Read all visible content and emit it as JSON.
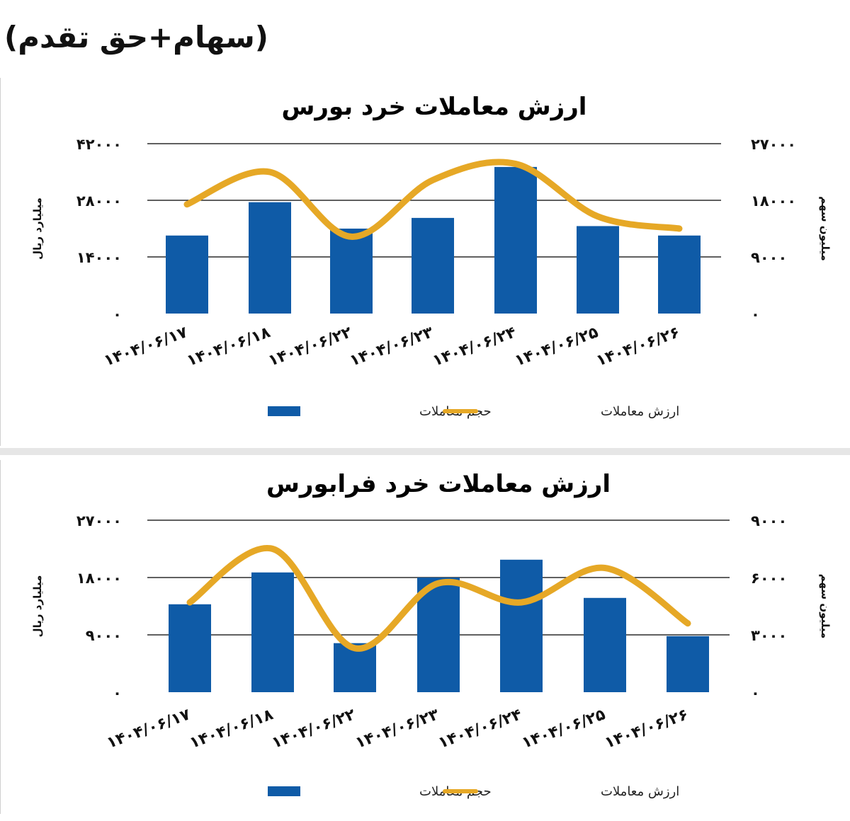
{
  "header_note": "(سهام+حق تقدم)",
  "colors": {
    "bar": "#0f5ba7",
    "line": "#e6a826",
    "grid": "#000000"
  },
  "chart_data": [
    {
      "type": "bar",
      "title": "ارزش معاملات خرد بورس",
      "categories": [
        "۱۴۰۴/۰۶/۱۷",
        "۱۴۰۴/۰۶/۱۸",
        "۱۴۰۴/۰۶/۲۲",
        "۱۴۰۴/۰۶/۲۳",
        "۱۴۰۴/۰۶/۲۴",
        "۱۴۰۴/۰۶/۲۵",
        "۱۴۰۴/۰۶/۲۶"
      ],
      "left_axis": {
        "label": "میلیارد ریال",
        "ylim": [
          0,
          42000
        ],
        "ticks": [
          "۰",
          "۱۴۰۰۰",
          "۲۸۰۰۰",
          "۴۲۰۰۰"
        ]
      },
      "right_axis": {
        "label": "میلیون سهم",
        "ylim": [
          0,
          27000
        ],
        "ticks": [
          "۰",
          "۹۰۰۰",
          "۱۸۰۰۰",
          "۲۷۰۰۰"
        ]
      },
      "series": [
        {
          "name": "حجم معاملات",
          "axis": "right",
          "kind": "bar",
          "values": [
            12400,
            17700,
            13500,
            15200,
            23300,
            13900,
            12400
          ]
        },
        {
          "name": "ارزش معاملات",
          "axis": "left",
          "kind": "line",
          "values": [
            27000,
            35000,
            19000,
            33000,
            37000,
            24000,
            21000
          ]
        }
      ],
      "grid": true,
      "legend": "bottom"
    },
    {
      "type": "bar",
      "title": "ارزش معاملات خرد فرابورس",
      "categories": [
        "۱۴۰۴/۰۶/۱۷",
        "۱۴۰۴/۰۶/۱۸",
        "۱۴۰۴/۰۶/۲۲",
        "۱۴۰۴/۰۶/۲۳",
        "۱۴۰۴/۰۶/۲۴",
        "۱۴۰۴/۰۶/۲۵",
        "۱۴۰۴/۰۶/۲۶"
      ],
      "left_axis": {
        "label": "میلیارد ریال",
        "ylim": [
          0,
          27000
        ],
        "ticks": [
          "۰",
          "۹۰۰۰",
          "۱۸۰۰۰",
          "۲۷۰۰۰"
        ]
      },
      "right_axis": {
        "label": "میلیون سهم",
        "ylim": [
          0,
          9000
        ],
        "ticks": [
          "۰",
          "۳۰۰۰",
          "۶۰۰۰",
          "۹۰۰۰"
        ]
      },
      "series": [
        {
          "name": "حجم معاملات",
          "axis": "left",
          "kind": "bar",
          "values": [
            13800,
            18800,
            7700,
            18000,
            20800,
            14800,
            8800
          ]
        },
        {
          "name": "ارزش معاملات",
          "axis": "right",
          "kind": "line",
          "values": [
            4700,
            7500,
            2300,
            5700,
            4700,
            6500,
            3600
          ]
        }
      ],
      "grid": true,
      "legend": "bottom"
    }
  ]
}
